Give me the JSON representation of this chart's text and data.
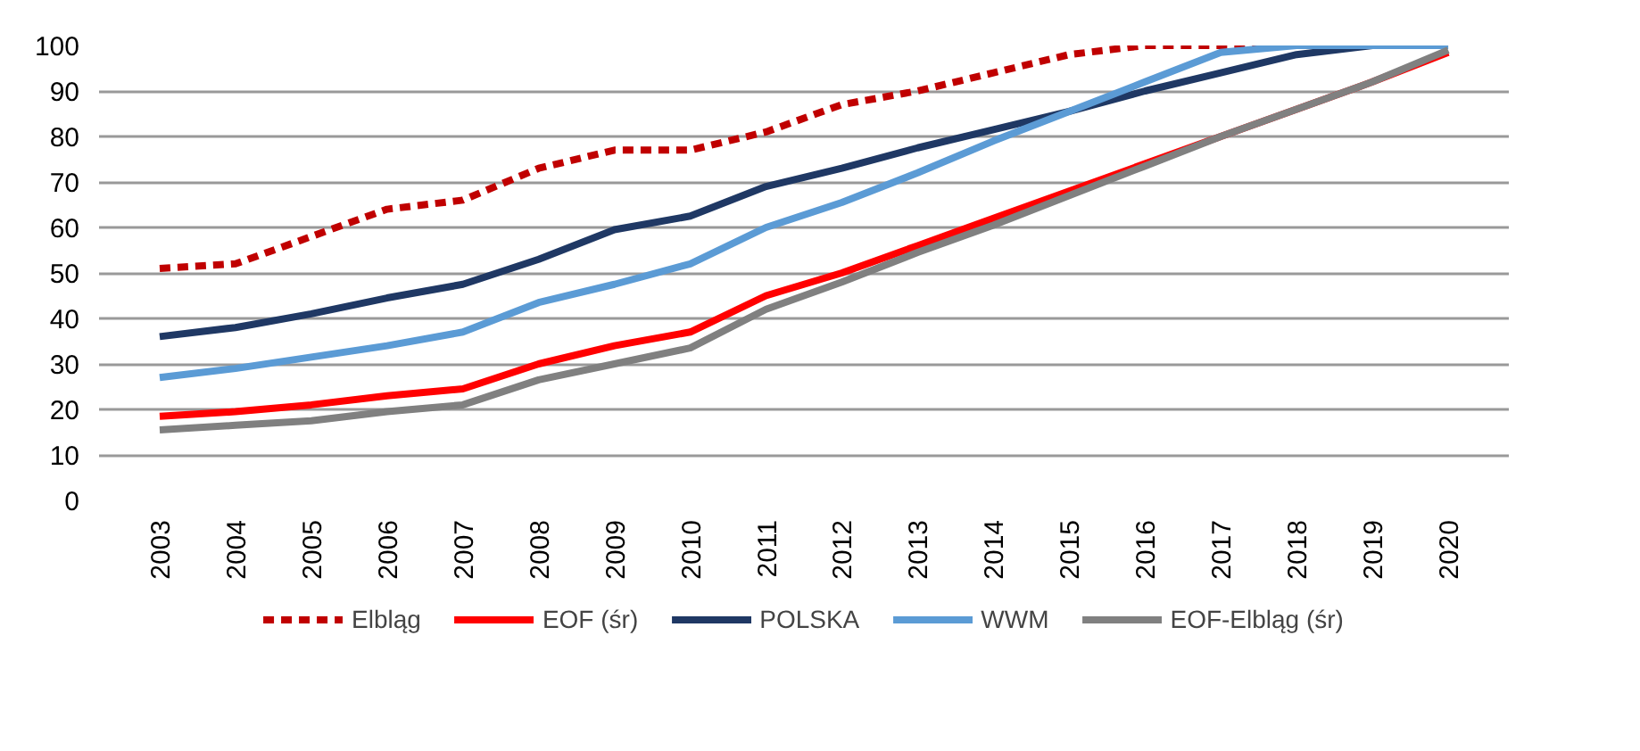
{
  "chart_data": {
    "type": "line",
    "categories": [
      "2003",
      "2004",
      "2005",
      "2006",
      "2007",
      "2008",
      "2009",
      "2010",
      "2011",
      "2012",
      "2013",
      "2014",
      "2015",
      "2016",
      "2017",
      "2018",
      "2019",
      "2020"
    ],
    "series": [
      {
        "name": "Elbląg",
        "color": "#c00000",
        "line_style": "dashed",
        "values": [
          51,
          52,
          58,
          64,
          66,
          73,
          77,
          77,
          81,
          87,
          90,
          94,
          98,
          100,
          100,
          100,
          100,
          100
        ]
      },
      {
        "name": "EOF (śr)",
        "color": "#ff0000",
        "values": [
          18.5,
          19.5,
          21,
          23,
          24.5,
          30,
          34,
          37,
          45,
          50,
          56,
          62,
          68,
          74,
          80,
          86,
          92,
          98.5
        ]
      },
      {
        "name": "POLSKA",
        "color": "#1f3864",
        "values": [
          36,
          38,
          41,
          44.5,
          47.5,
          53,
          59.5,
          62.5,
          69,
          73,
          77.5,
          81.5,
          85.5,
          90,
          94,
          98,
          100,
          100
        ]
      },
      {
        "name": "WWM",
        "color": "#5b9bd5",
        "values": [
          27,
          29,
          31.5,
          34,
          37,
          43.5,
          47.5,
          52,
          60,
          65.5,
          72,
          79,
          85.5,
          92,
          98.5,
          100,
          100,
          100
        ]
      },
      {
        "name": "EOF-Elbląg (śr)",
        "color": "#808080",
        "values": [
          15.5,
          16.5,
          17.5,
          19.5,
          21,
          26.5,
          30,
          33.5,
          42,
          48,
          54.5,
          60.5,
          67,
          73.5,
          80,
          86,
          92,
          99
        ]
      }
    ],
    "ylim": [
      0,
      100
    ],
    "yticks": [
      0,
      10,
      20,
      30,
      40,
      50,
      60,
      70,
      80,
      90,
      100
    ],
    "grid": "y",
    "legend": "bottom",
    "line_style": "solid"
  }
}
